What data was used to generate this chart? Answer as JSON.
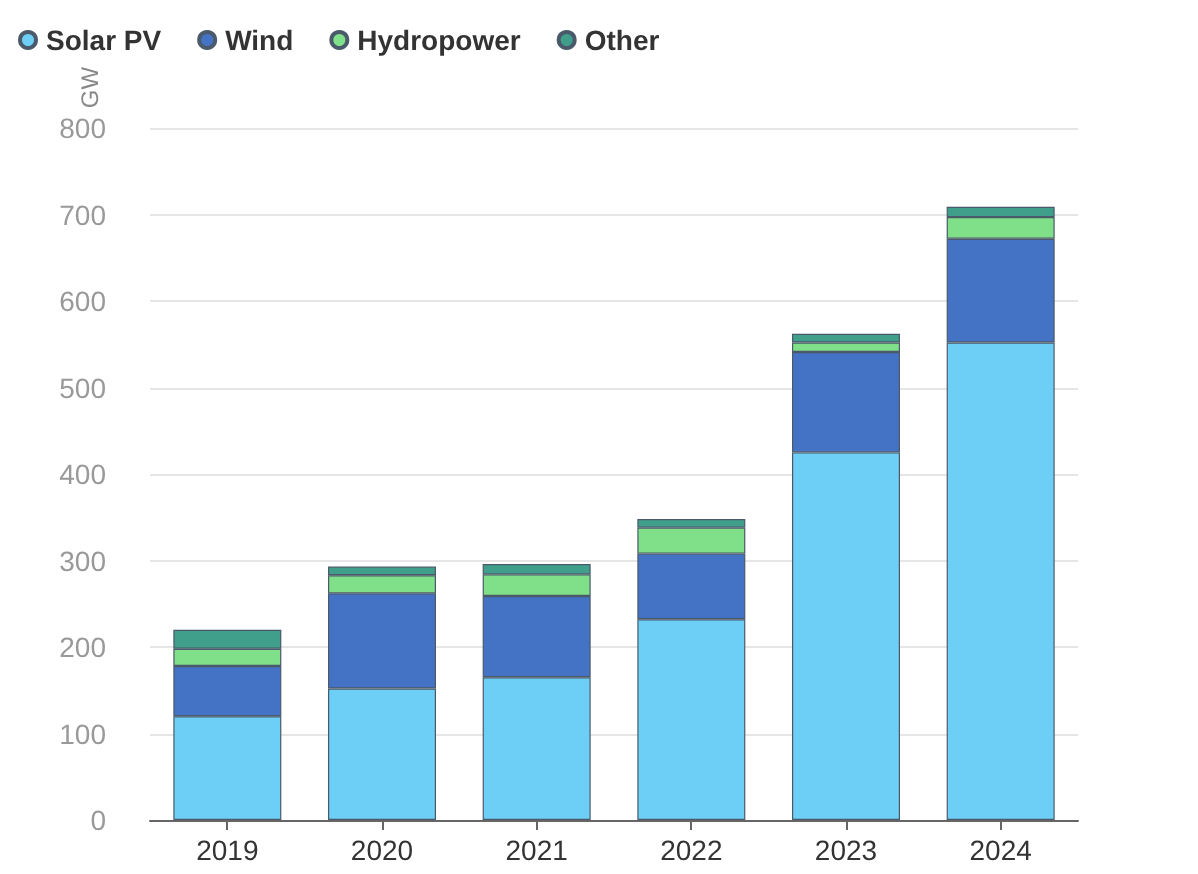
{
  "chart_data": {
    "type": "bar",
    "stacked": true,
    "ylabel": "GW",
    "categories": [
      "2019",
      "2020",
      "2021",
      "2022",
      "2023",
      "2024"
    ],
    "series": [
      {
        "name": "Solar PV",
        "color": "#6dcff6",
        "values": [
          120,
          152,
          165,
          232,
          425,
          552
        ]
      },
      {
        "name": "Wind",
        "color": "#4472c4",
        "values": [
          58,
          110,
          94,
          76,
          116,
          120
        ]
      },
      {
        "name": "Hydropower",
        "color": "#80e08a",
        "values": [
          20,
          21,
          25,
          30,
          11,
          25
        ]
      },
      {
        "name": "Other",
        "color": "#3f9f8a",
        "values": [
          22,
          10,
          12,
          10,
          10,
          12
        ]
      }
    ],
    "ylim": [
      0,
      800
    ],
    "yticks": [
      0,
      100,
      200,
      300,
      400,
      500,
      600,
      700,
      800
    ],
    "grid": "y",
    "legend": "top left"
  }
}
